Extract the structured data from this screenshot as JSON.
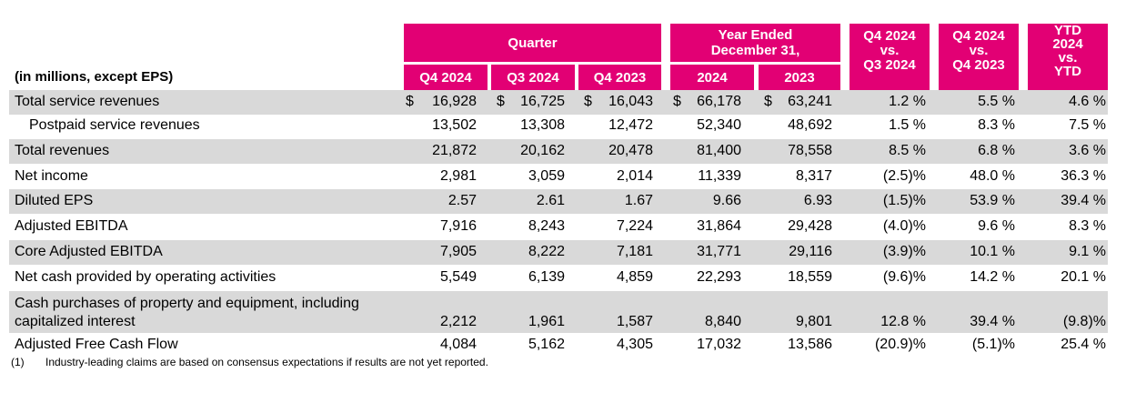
{
  "header": {
    "units_label": "(in millions, except EPS)",
    "quarter_group": "Quarter",
    "year_group_line1": "Year Ended",
    "year_group_line2": "December 31,",
    "col_q4_2024": "Q4 2024",
    "col_q3_2024": "Q3 2024",
    "col_q4_2023": "Q4 2023",
    "col_2024": "2024",
    "col_2023": "2023",
    "cmp1_line1": "Q4 2024",
    "cmp1_line2": "vs.",
    "cmp1_line3": "Q3 2024",
    "cmp2_line1": "Q4 2024",
    "cmp2_line2": "vs.",
    "cmp2_line3": "Q4 2023",
    "cmp3_line1": "YTD",
    "cmp3_line2": "2024",
    "cmp3_line3": "vs.",
    "cmp3_line4": "YTD"
  },
  "currency_symbol": "$",
  "rows": [
    {
      "label": "Total service revenues",
      "values": [
        "16,928",
        "16,725",
        "16,043",
        "66,178",
        "63,241",
        "1.2 %",
        "5.5 %",
        "4.6 %"
      ]
    },
    {
      "label": "Postpaid service revenues",
      "values": [
        "13,502",
        "13,308",
        "12,472",
        "52,340",
        "48,692",
        "1.5 %",
        "8.3 %",
        "7.5 %"
      ]
    },
    {
      "label": "Total revenues",
      "values": [
        "21,872",
        "20,162",
        "20,478",
        "81,400",
        "78,558",
        "8.5 %",
        "6.8 %",
        "3.6 %"
      ]
    },
    {
      "label": "Net income",
      "values": [
        "2,981",
        "3,059",
        "2,014",
        "11,339",
        "8,317",
        "(2.5)%",
        "48.0 %",
        "36.3 %"
      ]
    },
    {
      "label": "Diluted EPS",
      "values": [
        "2.57",
        "2.61",
        "1.67",
        "9.66",
        "6.93",
        "(1.5)%",
        "53.9 %",
        "39.4 %"
      ]
    },
    {
      "label": "Adjusted EBITDA",
      "values": [
        "7,916",
        "8,243",
        "7,224",
        "31,864",
        "29,428",
        "(4.0)%",
        "9.6 %",
        "8.3 %"
      ]
    },
    {
      "label": "Core Adjusted EBITDA",
      "values": [
        "7,905",
        "8,222",
        "7,181",
        "31,771",
        "29,116",
        "(3.9)%",
        "10.1 %",
        "9.1 %"
      ]
    },
    {
      "label": "Net cash provided by operating activities",
      "values": [
        "5,549",
        "6,139",
        "4,859",
        "22,293",
        "18,559",
        "(9.6)%",
        "14.2 %",
        "20.1 %"
      ]
    },
    {
      "label_line1": "Cash purchases of property and equipment, including",
      "label_line2": "capitalized interest",
      "values": [
        "2,212",
        "1,961",
        "1,587",
        "8,840",
        "9,801",
        "12.8 %",
        "39.4 %",
        "(9.8)%"
      ]
    },
    {
      "label": "Adjusted Free Cash Flow",
      "values": [
        "4,084",
        "5,162",
        "4,305",
        "17,032",
        "13,586",
        "(20.9)%",
        "(5.1)%",
        "25.4 %"
      ]
    }
  ],
  "footnote": {
    "number": "(1)",
    "text": "Industry-leading claims are based on consensus expectations if results are not yet reported."
  }
}
